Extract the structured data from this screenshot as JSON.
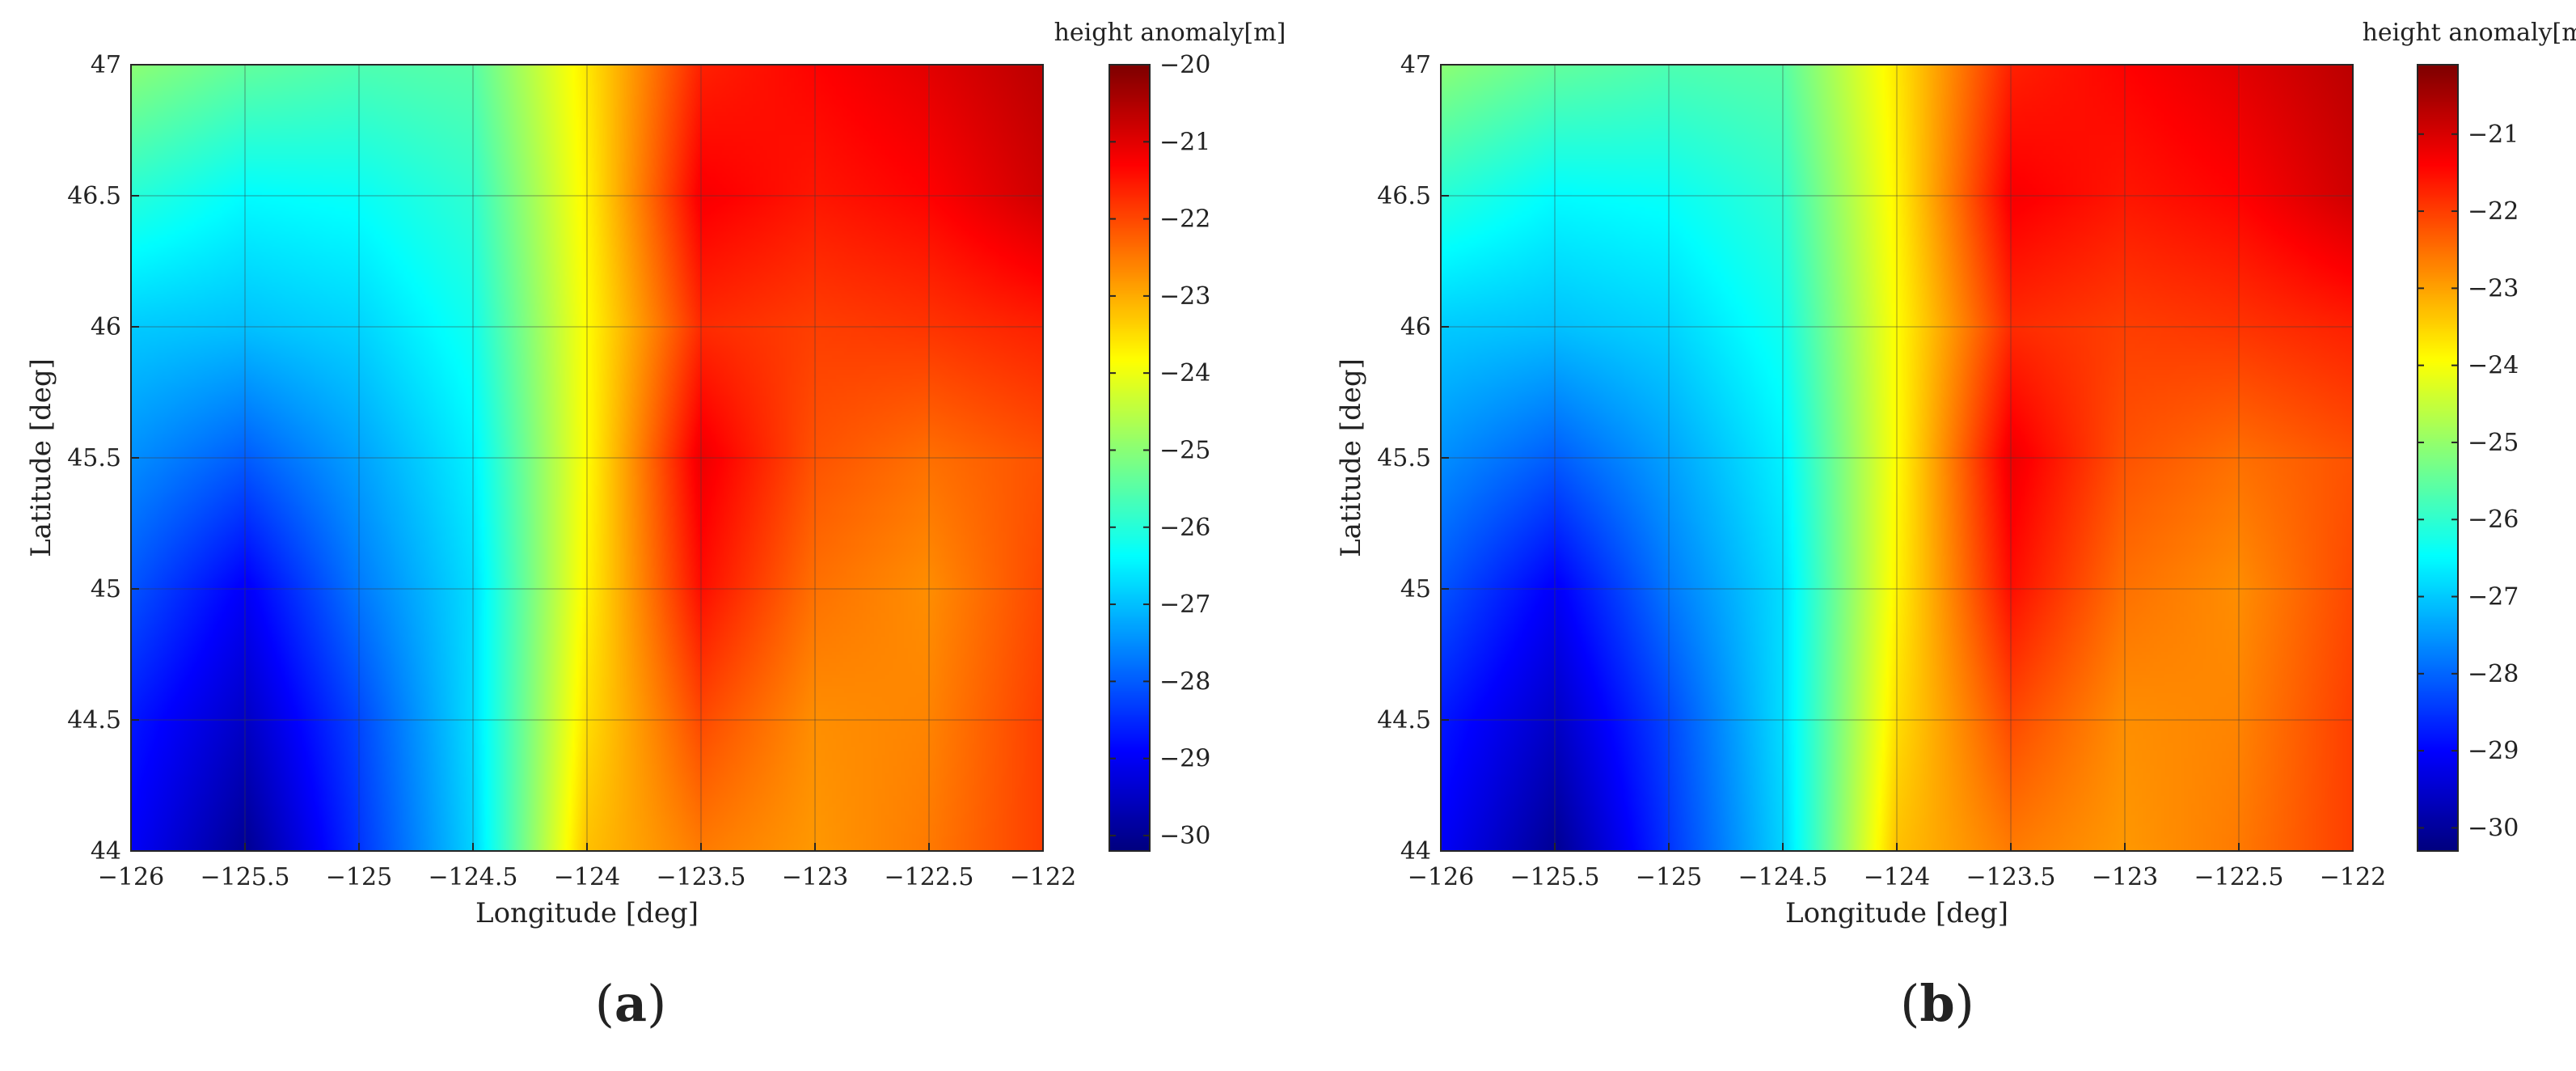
{
  "chart_data": [
    {
      "type": "heatmap",
      "panel_label_open": "(",
      "panel_label_letter": "a",
      "panel_label_close": ")",
      "xlabel": "Longitude [deg]",
      "ylabel": "Latitude [deg]",
      "xlim": [
        -126,
        -122
      ],
      "ylim": [
        44,
        47
      ],
      "x_ticks": [
        -126,
        -125.5,
        -125,
        -124.5,
        -124,
        -123.5,
        -123,
        -122.5,
        -122
      ],
      "x_tick_labels": [
        "−126",
        "−125.5",
        "−125",
        "−124.5",
        "−124",
        "−123.5",
        "−123",
        "−122.5",
        "−122"
      ],
      "y_ticks": [
        44,
        44.5,
        45,
        45.5,
        46,
        46.5,
        47
      ],
      "y_tick_labels": [
        "44",
        "44.5",
        "45",
        "45.5",
        "46",
        "46.5",
        "47"
      ],
      "grid": true,
      "colormap": "jet",
      "colorbar": {
        "title": "height anomaly[m]",
        "clim": [
          -30.2,
          -20
        ],
        "ticks": [
          -20,
          -21,
          -22,
          -23,
          -24,
          -25,
          -26,
          -27,
          -28,
          -29,
          -30
        ],
        "tick_labels": [
          "−20",
          "−21",
          "−22",
          "−23",
          "−24",
          "−25",
          "−26",
          "−27",
          "−28",
          "−29",
          "−30"
        ]
      },
      "x": [
        -126,
        -125.5,
        -125,
        -124.5,
        -124,
        -123.5,
        -123,
        -122.5,
        -122
      ],
      "y": [
        47,
        46.5,
        46,
        45.5,
        45,
        44.5,
        44
      ],
      "z": [
        [
          -25.0,
          -25.4,
          -25.6,
          -25.5,
          -23.6,
          -21.6,
          -21.3,
          -21.0,
          -20.6
        ],
        [
          -26.0,
          -26.4,
          -26.3,
          -25.9,
          -23.7,
          -21.2,
          -21.5,
          -21.3,
          -20.8
        ],
        [
          -26.9,
          -27.0,
          -26.8,
          -26.2,
          -23.8,
          -21.7,
          -21.9,
          -21.8,
          -21.6
        ],
        [
          -27.5,
          -28.0,
          -27.3,
          -26.5,
          -23.8,
          -21.1,
          -22.1,
          -22.4,
          -22.1
        ],
        [
          -28.1,
          -29.0,
          -27.7,
          -26.7,
          -23.7,
          -21.4,
          -22.4,
          -22.7,
          -22.0
        ],
        [
          -28.7,
          -29.5,
          -28.2,
          -26.7,
          -23.5,
          -22.0,
          -22.7,
          -22.6,
          -21.9
        ],
        [
          -29.0,
          -30.0,
          -28.4,
          -26.8,
          -23.2,
          -22.5,
          -22.8,
          -22.5,
          -21.9
        ]
      ]
    },
    {
      "type": "heatmap",
      "panel_label_open": "(",
      "panel_label_letter": "b",
      "panel_label_close": ")",
      "xlabel": "Longitude [deg]",
      "ylabel": "Latitude [deg]",
      "xlim": [
        -126,
        -122
      ],
      "ylim": [
        44,
        47
      ],
      "x_ticks": [
        -126,
        -125.5,
        -125,
        -124.5,
        -124,
        -123.5,
        -123,
        -122.5,
        -122
      ],
      "x_tick_labels": [
        "−126",
        "−125.5",
        "−125",
        "−124.5",
        "−124",
        "−123.5",
        "−123",
        "−122.5",
        "−122"
      ],
      "y_ticks": [
        44,
        44.5,
        45,
        45.5,
        46,
        46.5,
        47
      ],
      "y_tick_labels": [
        "44",
        "44.5",
        "45",
        "45.5",
        "46",
        "46.5",
        "47"
      ],
      "grid": true,
      "colormap": "jet",
      "colorbar": {
        "title": "height anomaly[m]",
        "clim": [
          -30.3,
          -20.1
        ],
        "ticks": [
          -21,
          -22,
          -23,
          -24,
          -25,
          -26,
          -27,
          -28,
          -29,
          -30
        ],
        "tick_labels": [
          "−21",
          "−22",
          "−23",
          "−24",
          "−25",
          "−26",
          "−27",
          "−28",
          "−29",
          "−30"
        ]
      },
      "x": [
        -126,
        -125.5,
        -125,
        -124.5,
        -124,
        -123.5,
        -123,
        -122.5,
        -122
      ],
      "y": [
        47,
        46.5,
        46,
        45.5,
        45,
        44.5,
        44
      ],
      "z": [
        [
          -25.1,
          -25.5,
          -25.7,
          -25.6,
          -23.7,
          -21.7,
          -21.4,
          -21.1,
          -20.7
        ],
        [
          -26.1,
          -26.5,
          -26.4,
          -26.0,
          -23.8,
          -21.3,
          -21.6,
          -21.4,
          -20.9
        ],
        [
          -27.0,
          -27.1,
          -26.9,
          -26.3,
          -23.9,
          -21.8,
          -22.0,
          -21.9,
          -21.7
        ],
        [
          -27.6,
          -28.1,
          -27.4,
          -26.6,
          -23.9,
          -21.2,
          -22.2,
          -22.5,
          -22.2
        ],
        [
          -28.2,
          -29.1,
          -27.8,
          -26.8,
          -23.8,
          -21.5,
          -22.5,
          -22.8,
          -22.1
        ],
        [
          -28.8,
          -29.6,
          -28.3,
          -26.8,
          -23.6,
          -22.1,
          -22.8,
          -22.7,
          -22.0
        ],
        [
          -29.1,
          -30.1,
          -28.5,
          -26.9,
          -23.3,
          -22.6,
          -22.9,
          -22.6,
          -22.0
        ]
      ]
    }
  ]
}
